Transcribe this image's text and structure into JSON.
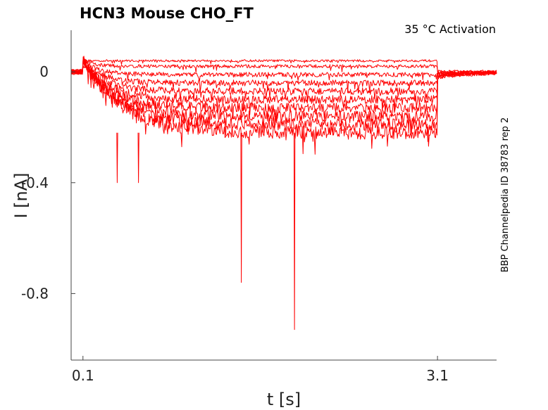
{
  "chart_data": {
    "type": "line",
    "title": "HCN3  Mouse  CHO_FT",
    "annotation": "35 °C  Activation",
    "side_label": "BBP Channelpedia ID 38783 rep 2",
    "xlabel": "t [s]",
    "ylabel": "I [nA]",
    "xlim": [
      0.0,
      3.6
    ],
    "ylim": [
      -1.04,
      0.15
    ],
    "xticks": [
      {
        "value": 0.1,
        "label": "0.1"
      },
      {
        "value": 3.1,
        "label": "3.1"
      }
    ],
    "yticks": [
      {
        "value": 0,
        "label": "0"
      },
      {
        "value": -0.4,
        "label": "-0.4"
      },
      {
        "value": -0.8,
        "label": "-0.8"
      }
    ],
    "step_start": 0.1,
    "step_end": 3.1,
    "trace_color": "#ff0000",
    "series": [
      {
        "steady": 0.04
      },
      {
        "steady": 0.02
      },
      {
        "steady": -0.01
      },
      {
        "steady": -0.04
      },
      {
        "steady": -0.07
      },
      {
        "steady": -0.1
      },
      {
        "steady": -0.13
      },
      {
        "steady": -0.16
      },
      {
        "steady": -0.19
      },
      {
        "steady": -0.22
      }
    ],
    "spikes": [
      {
        "t": 0.39,
        "i": -0.4
      },
      {
        "t": 0.57,
        "i": -0.4
      },
      {
        "t": 1.44,
        "i": -0.76
      },
      {
        "t": 1.89,
        "i": -0.93
      }
    ]
  }
}
